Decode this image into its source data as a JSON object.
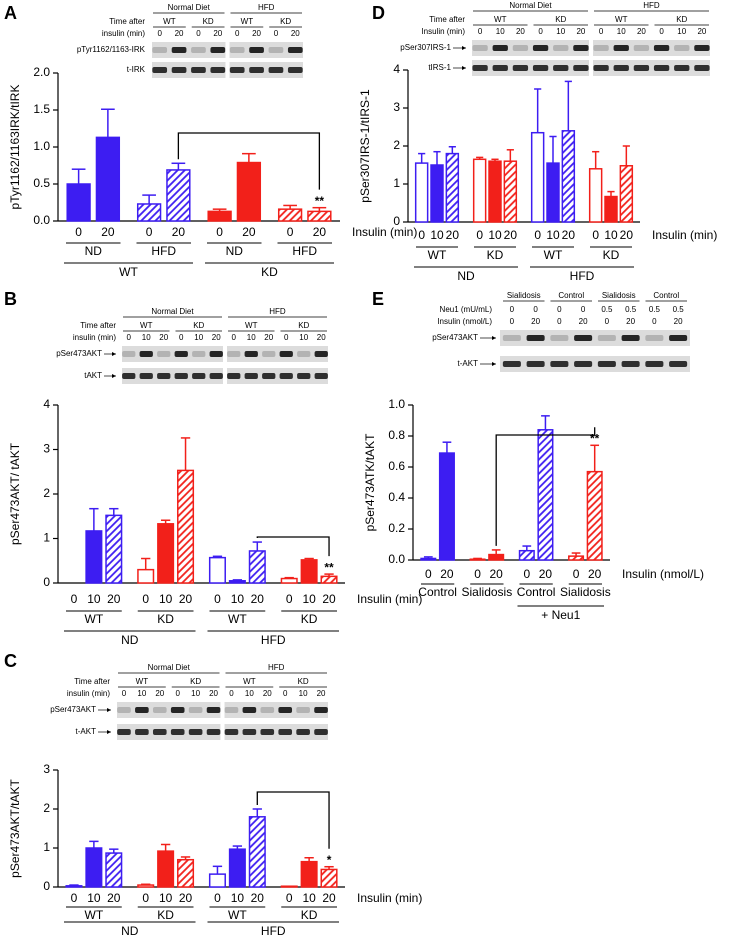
{
  "chart_data": [
    {
      "panel": "A",
      "type": "bar",
      "ylabel": "pTyr1162/1163IRK/tIRK",
      "ylim": [
        0,
        2
      ],
      "yticks": [
        {
          "value": 0,
          "label": "0.0"
        },
        {
          "value": 0.5,
          "label": "0.5"
        },
        {
          "value": 1,
          "label": "1.0"
        },
        {
          "value": 1.5,
          "label": "1.5"
        },
        {
          "value": 2,
          "label": "2.0"
        }
      ],
      "categories": [
        "0",
        "20",
        "0",
        "20",
        "0",
        "20",
        "0",
        "20"
      ],
      "values": [
        0.5,
        1.13,
        0.23,
        0.69,
        0.13,
        0.79,
        0.16,
        0.13
      ],
      "errors": [
        0.2,
        0.38,
        0.12,
        0.09,
        0.03,
        0.12,
        0.05,
        0.05
      ],
      "fills": [
        "solid",
        "solid",
        "hatched",
        "hatched",
        "solid",
        "solid",
        "hatched",
        "hatched"
      ],
      "colors": [
        "#3d1df2",
        "#3d1df2",
        "#3d1df2",
        "#3d1df2",
        "#f2201a",
        "#f2201a",
        "#f2201a",
        "#f2201a"
      ],
      "significance": [
        null,
        null,
        null,
        null,
        null,
        null,
        null,
        "**"
      ],
      "xlabel": "Insulin (min)",
      "group_labels": [
        "ND",
        "HFD",
        "ND",
        "HFD"
      ],
      "outer_labels": [
        "WT",
        "KD"
      ],
      "blot": {
        "groups": [
          "Normal Diet",
          "HFD"
        ],
        "subgroups": [
          "WT",
          "KD",
          "WT",
          "KD"
        ],
        "header_rows": [
          {
            "label": "Time after"
          },
          {
            "label": "insulin (min)",
            "lanes": [
              "0",
              "20",
              "0",
              "20",
              "0",
              "20",
              "0",
              "20"
            ]
          }
        ],
        "rows": [
          "pTyr1162/1163-IRK",
          "t-IRK"
        ]
      }
    },
    {
      "panel": "B",
      "type": "bar",
      "ylabel": "pSer473AKT/ tAKT",
      "ylim": [
        0,
        4
      ],
      "yticks": [
        0,
        1,
        2,
        3,
        4
      ],
      "categories": [
        "0",
        "10",
        "20",
        "0",
        "10",
        "20",
        "0",
        "10",
        "20",
        "0",
        "10",
        "20"
      ],
      "values": [
        0,
        1.17,
        1.52,
        0.3,
        1.33,
        2.53,
        0.57,
        0.05,
        0.72,
        0.1,
        0.52,
        0.15
      ],
      "errors": [
        null,
        0.5,
        0.15,
        0.25,
        0.08,
        0.73,
        0.03,
        0.02,
        0.2,
        0.02,
        0.03,
        0.05
      ],
      "fills": [
        "open",
        "solid",
        "hatched",
        "open",
        "solid",
        "hatched",
        "open",
        "solid",
        "hatched",
        "open",
        "solid",
        "hatched"
      ],
      "colors": [
        "#3d1df2",
        "#3d1df2",
        "#3d1df2",
        "#f2201a",
        "#f2201a",
        "#f2201a",
        "#3d1df2",
        "#3d1df2",
        "#3d1df2",
        "#f2201a",
        "#f2201a",
        "#f2201a"
      ],
      "significance": [
        null,
        null,
        null,
        null,
        null,
        null,
        null,
        null,
        null,
        null,
        null,
        "**"
      ],
      "xlabel": "Insulin (min)",
      "group_labels": [
        "WT",
        "KD",
        "WT",
        "KD"
      ],
      "outer_labels": [
        "ND",
        "HFD"
      ],
      "blot": {
        "groups": [
          "Normal Diet",
          "HFD"
        ],
        "subgroups": [
          "WT",
          "KD",
          "WT",
          "KD"
        ],
        "header_rows": [
          {
            "label": "Time after"
          },
          {
            "label": "insulin (min)",
            "lanes": [
              "0",
              "10",
              "20",
              "0",
              "10",
              "20",
              "0",
              "10",
              "20",
              "0",
              "10",
              "20"
            ]
          }
        ],
        "rows": [
          "pSer473AKT",
          "tAKT"
        ]
      }
    },
    {
      "panel": "C",
      "type": "bar",
      "ylabel": "pSer473AKT/tAKT",
      "ylim": [
        0,
        3
      ],
      "yticks": [
        0,
        1,
        2,
        3
      ],
      "categories": [
        "0",
        "10",
        "20",
        "0",
        "10",
        "20",
        "0",
        "10",
        "20",
        "0",
        "10",
        "20"
      ],
      "values": [
        0.03,
        1.0,
        0.87,
        0.05,
        0.92,
        0.7,
        0.33,
        0.97,
        1.8,
        0.02,
        0.65,
        0.45
      ],
      "errors": [
        0.02,
        0.17,
        0.1,
        0.02,
        0.17,
        0.07,
        0.2,
        0.08,
        0.2,
        null,
        0.1,
        0.07
      ],
      "fills": [
        "open",
        "solid",
        "hatched",
        "open",
        "solid",
        "hatched",
        "open",
        "solid",
        "hatched",
        "open",
        "solid",
        "hatched"
      ],
      "colors": [
        "#3d1df2",
        "#3d1df2",
        "#3d1df2",
        "#f2201a",
        "#f2201a",
        "#f2201a",
        "#3d1df2",
        "#3d1df2",
        "#3d1df2",
        "#f2201a",
        "#f2201a",
        "#f2201a"
      ],
      "significance": [
        null,
        null,
        null,
        null,
        null,
        null,
        null,
        null,
        null,
        null,
        null,
        "*"
      ],
      "xlabel": "Insulin (min)",
      "group_labels": [
        "WT",
        "KD",
        "WT",
        "KD"
      ],
      "outer_labels": [
        "ND",
        "HFD"
      ],
      "blot": {
        "groups": [
          "Normal Diet",
          "HFD"
        ],
        "subgroups": [
          "WT",
          "KD",
          "WT",
          "KD"
        ],
        "header_rows": [
          {
            "label": "Time after"
          },
          {
            "label": "insulin (min)",
            "lanes": [
              "0",
              "10",
              "20",
              "0",
              "10",
              "20",
              "0",
              "10",
              "20",
              "0",
              "10",
              "20"
            ]
          }
        ],
        "rows": [
          "pSer473AKT",
          "t-AKT"
        ]
      }
    },
    {
      "panel": "D",
      "type": "bar",
      "ylabel": "pSer307IRS-1/tIRS-1",
      "ylim": [
        0,
        4
      ],
      "yticks": [
        0,
        1,
        2,
        3,
        4
      ],
      "categories": [
        "0",
        "10",
        "20",
        "0",
        "10",
        "20",
        "0",
        "10",
        "20",
        "0",
        "10",
        "20"
      ],
      "values": [
        1.55,
        1.5,
        1.8,
        1.65,
        1.6,
        1.6,
        2.35,
        1.55,
        2.4,
        1.4,
        0.67,
        1.48
      ],
      "errors": [
        0.25,
        0.35,
        0.18,
        0.05,
        0.05,
        0.3,
        1.15,
        0.7,
        1.3,
        0.45,
        0.13,
        0.52
      ],
      "fills": [
        "open",
        "solid",
        "hatched",
        "open",
        "solid",
        "hatched",
        "open",
        "solid",
        "hatched",
        "open",
        "solid",
        "hatched"
      ],
      "colors": [
        "#3d1df2",
        "#3d1df2",
        "#3d1df2",
        "#f2201a",
        "#f2201a",
        "#f2201a",
        "#3d1df2",
        "#3d1df2",
        "#3d1df2",
        "#f2201a",
        "#f2201a",
        "#f2201a"
      ],
      "significance": [
        null,
        null,
        null,
        null,
        null,
        null,
        null,
        null,
        null,
        null,
        null,
        null
      ],
      "xlabel": "Insulin (min)",
      "group_labels": [
        "WT",
        "KD",
        "WT",
        "KD"
      ],
      "outer_labels": [
        "ND",
        "HFD"
      ],
      "blot": {
        "groups": [
          "Normal Diet",
          "HFD"
        ],
        "subgroups": [
          "WT",
          "KD",
          "WT",
          "KD"
        ],
        "header_rows": [
          {
            "label": "Time after"
          },
          {
            "label": "Insulin (min)",
            "lanes": [
              "0",
              "10",
              "20",
              "0",
              "10",
              "20",
              "0",
              "10",
              "20",
              "0",
              "10",
              "20"
            ]
          }
        ],
        "rows": [
          "pSer307IRS-1",
          "tIRS-1"
        ]
      }
    },
    {
      "panel": "E",
      "type": "bar",
      "ylabel": "pSer473ATK/tAKT",
      "ylim": [
        0,
        1
      ],
      "yticks": [
        {
          "value": 0,
          "label": "0.0"
        },
        0.2,
        0.4,
        0.6,
        0.8,
        {
          "value": 1,
          "label": "1.0"
        }
      ],
      "categories": [
        "0",
        "20",
        "0",
        "20",
        "0",
        "20",
        "0",
        "20"
      ],
      "values": [
        0.01,
        0.69,
        0.005,
        0.035,
        0.06,
        0.84,
        0.025,
        0.57
      ],
      "errors": [
        0.01,
        0.07,
        0.005,
        0.03,
        0.03,
        0.09,
        0.02,
        0.17
      ],
      "fills": [
        "solid",
        "solid",
        "solid",
        "solid",
        "hatched",
        "hatched",
        "hatched",
        "hatched"
      ],
      "colors": [
        "#3d1df2",
        "#3d1df2",
        "#f2201a",
        "#f2201a",
        "#3d1df2",
        "#3d1df2",
        "#f2201a",
        "#f2201a"
      ],
      "significance": [
        null,
        null,
        null,
        null,
        null,
        null,
        null,
        "**"
      ],
      "xlabel": "Insulin (nmol/L)",
      "group_labels": [
        "Control",
        "Sialidosis",
        "Control",
        "Sialidosis"
      ],
      "outer_labels": [
        null,
        "+ Neu1"
      ],
      "blot": {
        "groups": [
          "Sialidosis",
          "Control",
          "Sialidosis",
          "Control"
        ],
        "header_rows": [
          {
            "label": "Neu1 (mU/mL)",
            "lanes": [
              "0",
              "0",
              "0",
              "0",
              "0.5",
              "0.5",
              "0.5",
              "0.5"
            ]
          },
          {
            "label": "Insulin (nmol/L)",
            "lanes": [
              "0",
              "20",
              "0",
              "20",
              "0",
              "20",
              "0",
              "20"
            ]
          }
        ],
        "rows": [
          "pSer473AKT",
          "t-AKT"
        ]
      }
    }
  ]
}
